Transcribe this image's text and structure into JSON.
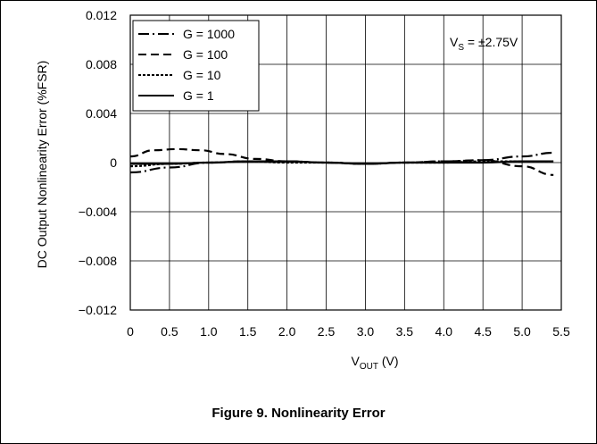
{
  "figure_caption": "Figure 9. Nonlinearity Error",
  "chart_data": {
    "type": "line",
    "title": "",
    "xlabel_main": "V",
    "xlabel_sub": "OUT",
    "xlabel_unit": " (V)",
    "ylabel": "DC Output Nonlinearity Error (%FSR)",
    "annotation_main": "V",
    "annotation_sub": "S",
    "annotation_rest": " = ±2.75V",
    "xlim": [
      0,
      5.5
    ],
    "ylim": [
      -0.012,
      0.012
    ],
    "x_ticks": [
      "0",
      "0.5",
      "1.0",
      "1.5",
      "2.0",
      "2.5",
      "3.0",
      "3.5",
      "4.0",
      "4.5",
      "5.0",
      "5.5"
    ],
    "y_ticks": [
      "0.012",
      "0.008",
      "0.004",
      "0",
      "−0.004",
      "−0.008",
      "−0.012"
    ],
    "grid": true,
    "legend_position": "top-left",
    "series": [
      {
        "name": "G = 1000",
        "x": [
          0,
          0.5,
          1.0,
          1.5,
          2.0,
          2.5,
          3.0,
          3.5,
          4.0,
          4.5,
          5.0,
          5.4
        ],
        "y": [
          -0.0008,
          -0.0004,
          0.0,
          0.0001,
          0.0001,
          0.0,
          -0.0001,
          0.0,
          0.0001,
          0.0002,
          0.0005,
          0.0008
        ]
      },
      {
        "name": "G = 100",
        "x": [
          0,
          0.3,
          0.6,
          0.9,
          1.2,
          1.6,
          2.0,
          2.5,
          3.0,
          3.5,
          4.0,
          4.5,
          5.0,
          5.4
        ],
        "y": [
          0.0005,
          0.001,
          0.0011,
          0.001,
          0.0007,
          0.0003,
          0.0001,
          0.0,
          -0.0001,
          0.0,
          0.0001,
          0.0002,
          -0.0003,
          -0.001
        ]
      },
      {
        "name": "G = 10",
        "x": [
          0,
          0.5,
          1.0,
          1.5,
          2.0,
          2.5,
          3.0,
          3.5,
          4.0,
          4.5,
          5.0,
          5.4
        ],
        "y": [
          -0.0003,
          -0.0001,
          0.0,
          0.0001,
          0.0,
          0.0,
          -0.0001,
          0.0,
          0.0,
          0.0001,
          0.0001,
          0.0001
        ]
      },
      {
        "name": "G = 1",
        "x": [
          0,
          0.5,
          1.0,
          1.5,
          2.0,
          2.5,
          3.0,
          3.5,
          4.0,
          4.5,
          5.0,
          5.4
        ],
        "y": [
          -0.0001,
          -0.0001,
          0.0,
          0.0001,
          0.0001,
          0.0,
          -0.0001,
          0.0,
          0.0,
          0.0,
          0.0001,
          0.0001
        ]
      }
    ]
  }
}
